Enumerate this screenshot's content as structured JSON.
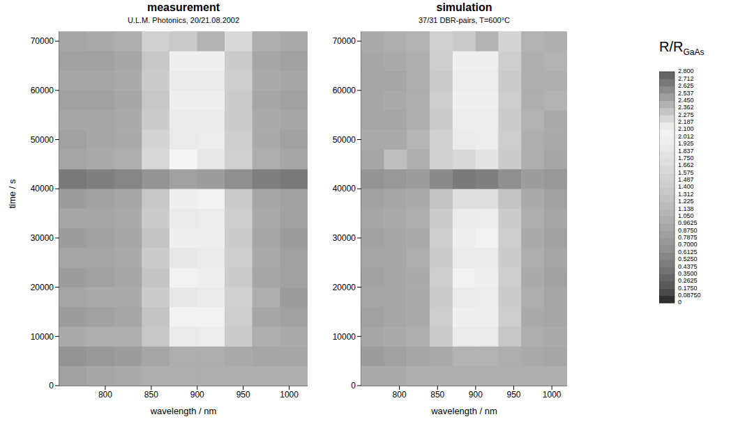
{
  "chart_data": [
    {
      "type": "heatmap",
      "title": "measurement",
      "subtitle": "U.L.M. Photonics, 20/21.08.2002",
      "x_label": "wavelength / nm",
      "y_label": "time / s",
      "x": [
        765,
        795,
        825,
        855,
        885,
        915,
        945,
        975,
        1005
      ],
      "y": [
        2000,
        6000,
        10000,
        14000,
        18000,
        22000,
        26000,
        30000,
        34000,
        38000,
        42000,
        46000,
        50000,
        54000,
        58000,
        62000,
        66000,
        70000
      ],
      "cells": [
        [
          0.85,
          0.9,
          0.95,
          1.0,
          1.0,
          1.0,
          1.0,
          1.0,
          1.0
        ],
        [
          0.7,
          0.75,
          0.8,
          0.9,
          1.0,
          1.0,
          0.95,
          0.9,
          0.9
        ],
        [
          0.95,
          1.0,
          1.0,
          1.35,
          1.9,
          1.95,
          1.4,
          1.0,
          0.95
        ],
        [
          0.8,
          0.85,
          0.9,
          1.3,
          2.05,
          2.05,
          1.45,
          0.9,
          0.85
        ],
        [
          0.9,
          0.95,
          0.95,
          1.4,
          1.85,
          1.9,
          1.5,
          1.0,
          0.8
        ],
        [
          0.8,
          0.85,
          0.9,
          1.3,
          2.05,
          2.0,
          1.4,
          0.9,
          0.85
        ],
        [
          0.9,
          0.9,
          0.95,
          1.4,
          1.85,
          1.9,
          1.45,
          0.95,
          0.85
        ],
        [
          0.8,
          0.85,
          0.9,
          1.3,
          2.0,
          2.0,
          1.4,
          0.9,
          0.8
        ],
        [
          0.9,
          0.9,
          0.95,
          1.4,
          1.9,
          1.95,
          1.45,
          0.95,
          0.85
        ],
        [
          0.8,
          0.85,
          0.9,
          1.35,
          2.0,
          2.05,
          1.4,
          0.9,
          0.85
        ],
        [
          0.45,
          0.5,
          0.55,
          0.7,
          0.85,
          0.8,
          0.65,
          0.5,
          0.45
        ],
        [
          0.9,
          0.95,
          1.0,
          1.6,
          2.1,
          1.85,
          1.5,
          1.0,
          0.9
        ],
        [
          0.85,
          0.9,
          0.95,
          1.55,
          2.15,
          1.95,
          1.45,
          0.95,
          0.85
        ],
        [
          0.9,
          0.9,
          0.95,
          1.4,
          1.9,
          1.9,
          1.4,
          0.95,
          0.9
        ],
        [
          0.85,
          0.85,
          0.9,
          1.35,
          2.0,
          2.0,
          1.4,
          0.9,
          0.85
        ],
        [
          0.9,
          0.9,
          0.95,
          1.4,
          1.9,
          1.9,
          1.45,
          0.95,
          0.9
        ],
        [
          0.85,
          0.85,
          0.9,
          1.35,
          2.0,
          2.0,
          1.4,
          0.9,
          0.85
        ],
        [
          0.9,
          0.95,
          1.0,
          1.5,
          2.3,
          2.4,
          1.6,
          1.0,
          0.95
        ]
      ],
      "xlim": [
        750,
        1020
      ],
      "ylim": [
        0,
        72000
      ],
      "xticks": [
        800,
        850,
        900,
        950,
        1000
      ],
      "yticks": [
        0,
        10000,
        20000,
        30000,
        40000,
        50000,
        60000,
        70000
      ]
    },
    {
      "type": "heatmap",
      "title": "simulation",
      "subtitle": "37/31 DBR-pairs, T=600°C",
      "x_label": "wavelength / nm",
      "x": [
        765,
        795,
        825,
        855,
        885,
        915,
        945,
        975,
        1005
      ],
      "y": [
        2000,
        6000,
        10000,
        14000,
        18000,
        22000,
        26000,
        30000,
        34000,
        38000,
        42000,
        46000,
        50000,
        54000,
        58000,
        62000,
        66000,
        70000
      ],
      "cells": [
        [
          0.95,
          0.95,
          1.0,
          1.0,
          1.0,
          1.0,
          1.0,
          1.0,
          1.0
        ],
        [
          0.8,
          0.85,
          0.9,
          0.95,
          1.05,
          1.05,
          1.0,
          0.95,
          0.9
        ],
        [
          0.9,
          0.95,
          1.0,
          1.4,
          1.9,
          1.9,
          1.35,
          1.0,
          0.95
        ],
        [
          0.85,
          0.9,
          0.95,
          1.45,
          2.0,
          2.0,
          1.45,
          0.95,
          0.9
        ],
        [
          0.9,
          0.9,
          0.95,
          1.4,
          1.9,
          1.95,
          1.4,
          1.0,
          0.9
        ],
        [
          0.85,
          0.9,
          0.95,
          1.45,
          2.05,
          2.0,
          1.45,
          0.95,
          0.85
        ],
        [
          0.9,
          0.9,
          1.0,
          1.4,
          1.9,
          1.9,
          1.4,
          1.0,
          0.9
        ],
        [
          0.85,
          0.9,
          0.95,
          1.45,
          2.0,
          2.05,
          1.45,
          0.95,
          0.85
        ],
        [
          0.9,
          0.95,
          1.0,
          1.4,
          1.9,
          1.95,
          1.4,
          1.0,
          0.9
        ],
        [
          0.85,
          0.9,
          0.95,
          1.3,
          1.7,
          1.7,
          1.3,
          0.95,
          0.85
        ],
        [
          0.7,
          0.75,
          0.8,
          0.6,
          0.45,
          0.5,
          0.65,
          0.8,
          0.75
        ],
        [
          0.9,
          1.2,
          1.0,
          1.5,
          1.6,
          1.8,
          1.4,
          1.0,
          0.9
        ],
        [
          0.95,
          0.95,
          1.1,
          1.5,
          1.9,
          1.95,
          1.45,
          1.0,
          0.95
        ],
        [
          0.9,
          0.9,
          1.0,
          1.4,
          1.95,
          1.95,
          1.4,
          1.05,
          0.95
        ],
        [
          0.9,
          0.95,
          1.0,
          1.45,
          2.0,
          2.0,
          1.45,
          1.0,
          1.05
        ],
        [
          0.9,
          0.9,
          1.0,
          1.4,
          1.95,
          1.95,
          1.4,
          1.0,
          1.0
        ],
        [
          0.9,
          0.95,
          1.0,
          1.45,
          2.0,
          2.0,
          1.45,
          1.0,
          1.05
        ],
        [
          0.95,
          1.0,
          1.05,
          1.5,
          2.3,
          2.4,
          1.55,
          1.05,
          1.0
        ]
      ],
      "xlim": [
        750,
        1020
      ],
      "ylim": [
        0,
        72000
      ],
      "xticks": [
        800,
        850,
        900,
        950,
        1000
      ],
      "yticks": [
        0,
        10000,
        20000,
        30000,
        40000,
        50000,
        60000,
        70000
      ]
    }
  ],
  "colorbar": {
    "label": "R/R",
    "label_subscript": "GaAs",
    "range": [
      0,
      2.8
    ],
    "ticks": [
      0,
      {
        "value": 0.0875,
        "label": "0.08750"
      },
      {
        "value": 0.175,
        "label": "0.1750"
      },
      0.2625,
      {
        "value": 0.35,
        "label": "0.3500"
      },
      0.4375,
      {
        "value": 0.525,
        "label": "0.5250"
      },
      0.6125,
      {
        "value": 0.7,
        "label": "0.7000"
      },
      0.7875,
      {
        "value": 0.875,
        "label": "0.8750"
      },
      0.9625,
      {
        "value": 1.05,
        "label": "1.050"
      },
      {
        "value": 1.1375,
        "label": "1.138"
      },
      1.225,
      {
        "value": 1.3125,
        "label": "1.312"
      },
      {
        "value": 1.4,
        "label": "1.400"
      },
      {
        "value": 1.4875,
        "label": "1.487"
      },
      1.575,
      {
        "value": 1.6625,
        "label": "1.662"
      },
      {
        "value": 1.75,
        "label": "1.750"
      },
      {
        "value": 1.8375,
        "label": "1.837"
      },
      1.925,
      {
        "value": 2.0125,
        "label": "2.012"
      },
      {
        "value": 2.1,
        "label": "2.100"
      },
      {
        "value": 2.1875,
        "label": "2.187"
      },
      2.275,
      {
        "value": 2.3625,
        "label": "2.362"
      },
      {
        "value": 2.45,
        "label": "2.450"
      },
      {
        "value": 2.5375,
        "label": "2.537"
      },
      2.625,
      {
        "value": 2.7125,
        "label": "2.712"
      },
      {
        "value": 2.8,
        "label": "2.800"
      }
    ]
  }
}
